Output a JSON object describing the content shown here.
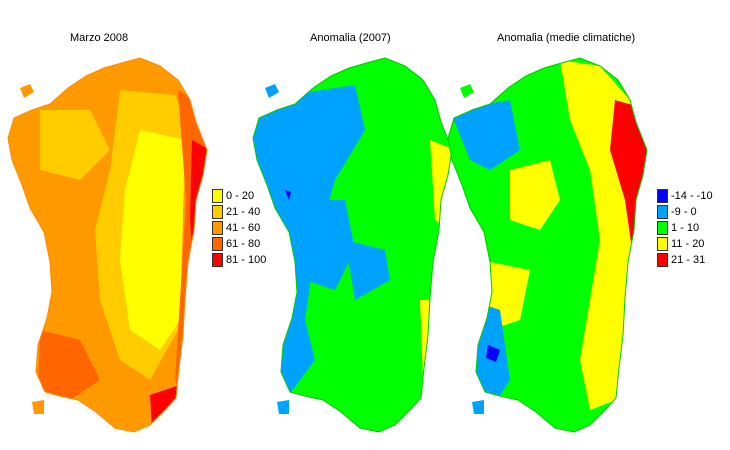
{
  "panels": [
    {
      "title": "Marzo 2008",
      "legend": [
        {
          "label": "0 - 20",
          "color": "#ffff00"
        },
        {
          "label": "21 - 40",
          "color": "#ffcc00"
        },
        {
          "label": "41 - 60",
          "color": "#ff9900"
        },
        {
          "label": "61 - 80",
          "color": "#ff6600"
        },
        {
          "label": "81 - 100",
          "color": "#ff0000"
        }
      ]
    },
    {
      "title": "Anomalia (2007)",
      "legend": []
    },
    {
      "title": "Anomalia (medie climatiche)",
      "legend": [
        {
          "label": "-14 - -10",
          "color": "#0000ff"
        },
        {
          "label": "-9 - 0",
          "color": "#00a2ff"
        },
        {
          "label": "1 - 10",
          "color": "#00ff00"
        },
        {
          "label": "11 - 20",
          "color": "#ffff00"
        },
        {
          "label": "21 - 31",
          "color": "#ff0000"
        }
      ]
    }
  ]
}
